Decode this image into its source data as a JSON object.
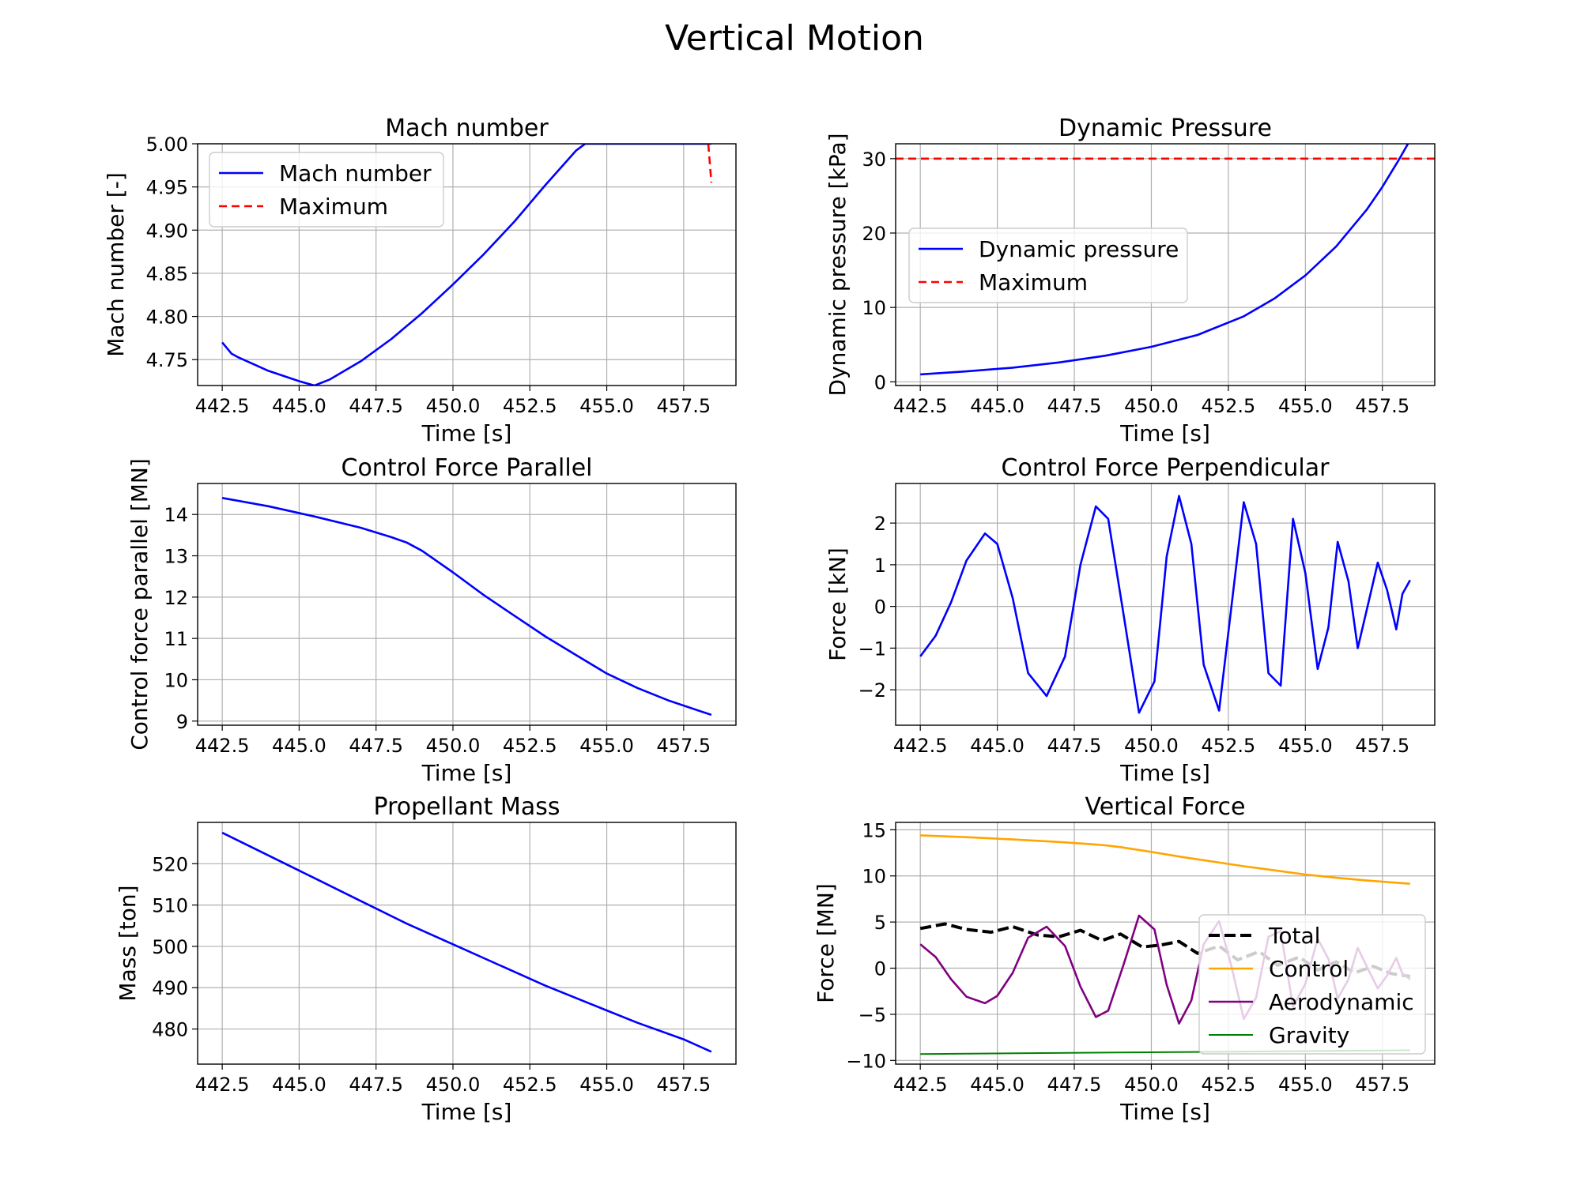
{
  "figure_title": "Vertical Motion",
  "colors": {
    "blue": "#0000ff",
    "red": "#ff0000",
    "black": "#000000",
    "orange": "#ffa500",
    "purple": "#800080",
    "green": "#008000",
    "grid": "#b0b0b0"
  },
  "chart_data": [
    {
      "type": "line",
      "title": "Mach number",
      "xlabel": "Time [s]",
      "ylabel": "Mach number [-]",
      "xlim": [
        441.7,
        459.2
      ],
      "ylim": [
        4.72,
        5.0
      ],
      "xticks": [
        442.5,
        445.0,
        447.5,
        450.0,
        452.5,
        455.0,
        457.5
      ],
      "xtick_labels": [
        "442.5",
        "445.0",
        "447.5",
        "450.0",
        "452.5",
        "455.0",
        "457.5"
      ],
      "yticks": [
        4.75,
        4.8,
        4.85,
        4.9,
        4.95,
        5.0
      ],
      "ytick_labels": [
        "4.75",
        "4.80",
        "4.85",
        "4.90",
        "4.95",
        "5.00"
      ],
      "grid": true,
      "legend": "upper-left",
      "series": [
        {
          "name": "Mach number",
          "color": "#0000ff",
          "x": [
            442.5,
            442.8,
            443.0,
            444.0,
            445.0,
            445.5,
            446.0,
            447.0,
            448.0,
            449.0,
            450.0,
            451.0,
            452.0,
            453.0,
            454.0,
            454.3,
            458.4
          ],
          "y": [
            4.77,
            4.757,
            4.753,
            4.737,
            4.725,
            4.72,
            4.727,
            4.748,
            4.774,
            4.804,
            4.837,
            4.872,
            4.91,
            4.952,
            4.992,
            5.0,
            5.0
          ]
        },
        {
          "name": "Maximum",
          "color": "#ff0000",
          "dash": true,
          "x": [
            458.3,
            458.4
          ],
          "y": [
            5.0,
            4.955
          ]
        }
      ]
    },
    {
      "type": "line",
      "title": "Dynamic Pressure",
      "xlabel": "Time [s]",
      "ylabel": "Dynamic pressure [kPa]",
      "xlim": [
        441.7,
        459.2
      ],
      "ylim": [
        -0.5,
        32
      ],
      "xticks": [
        442.5,
        445.0,
        447.5,
        450.0,
        452.5,
        455.0,
        457.5
      ],
      "xtick_labels": [
        "442.5",
        "445.0",
        "447.5",
        "450.0",
        "452.5",
        "455.0",
        "457.5"
      ],
      "yticks": [
        0,
        10,
        20,
        30
      ],
      "ytick_labels": [
        "0",
        "10",
        "20",
        "30"
      ],
      "grid": true,
      "legend": "center-left",
      "series": [
        {
          "name": "Dynamic pressure",
          "color": "#0000ff",
          "x": [
            442.5,
            444.0,
            445.5,
            447.0,
            448.5,
            450.0,
            451.5,
            453.0,
            454.0,
            455.0,
            456.0,
            457.0,
            457.5,
            458.0,
            458.4
          ],
          "y": [
            1.0,
            1.4,
            1.9,
            2.6,
            3.5,
            4.7,
            6.3,
            8.8,
            11.2,
            14.3,
            18.2,
            23.2,
            26.2,
            29.6,
            32.5
          ]
        },
        {
          "name": "Maximum",
          "color": "#ff0000",
          "dash": true,
          "x": [
            441.7,
            459.2
          ],
          "y": [
            30,
            30
          ]
        }
      ]
    },
    {
      "type": "line",
      "title": "Control Force Parallel",
      "xlabel": "Time [s]",
      "ylabel": "Control force parallel [MN]",
      "xlim": [
        441.7,
        459.2
      ],
      "ylim": [
        8.9,
        14.75
      ],
      "xticks": [
        442.5,
        445.0,
        447.5,
        450.0,
        452.5,
        455.0,
        457.5
      ],
      "xtick_labels": [
        "442.5",
        "445.0",
        "447.5",
        "450.0",
        "452.5",
        "455.0",
        "457.5"
      ],
      "yticks": [
        9,
        10,
        11,
        12,
        13,
        14
      ],
      "ytick_labels": [
        "9",
        "10",
        "11",
        "12",
        "13",
        "14"
      ],
      "grid": true,
      "series": [
        {
          "color": "#0000ff",
          "x": [
            442.5,
            444.0,
            445.5,
            447.0,
            448.0,
            448.5,
            449.0,
            450.0,
            451.0,
            452.0,
            453.0,
            454.0,
            455.0,
            456.0,
            457.0,
            458.4
          ],
          "y": [
            14.4,
            14.2,
            13.95,
            13.68,
            13.45,
            13.32,
            13.12,
            12.6,
            12.05,
            11.55,
            11.05,
            10.6,
            10.15,
            9.8,
            9.5,
            9.15
          ]
        }
      ]
    },
    {
      "type": "line",
      "title": "Control Force Perpendicular",
      "xlabel": "Time [s]",
      "ylabel": "Force [kN]",
      "xlim": [
        441.7,
        459.2
      ],
      "ylim": [
        -2.85,
        2.95
      ],
      "xticks": [
        442.5,
        445.0,
        447.5,
        450.0,
        452.5,
        455.0,
        457.5
      ],
      "xtick_labels": [
        "442.5",
        "445.0",
        "447.5",
        "450.0",
        "452.5",
        "455.0",
        "457.5"
      ],
      "yticks": [
        -2,
        -1,
        0,
        1,
        2
      ],
      "ytick_labels": [
        "−2",
        "−1",
        "0",
        "1",
        "2"
      ],
      "grid": true,
      "series": [
        {
          "color": "#0000ff",
          "x": [
            442.5,
            443.0,
            443.5,
            444.0,
            444.6,
            445.0,
            445.5,
            446.0,
            446.6,
            447.2,
            447.7,
            448.2,
            448.6,
            449.1,
            449.6,
            450.1,
            450.5,
            450.9,
            451.3,
            451.7,
            452.2,
            452.6,
            453.0,
            453.4,
            453.8,
            454.2,
            454.6,
            455.0,
            455.4,
            455.75,
            456.05,
            456.4,
            456.7,
            457.05,
            457.35,
            457.65,
            457.95,
            458.15,
            458.4
          ],
          "y": [
            -1.2,
            -0.7,
            0.1,
            1.1,
            1.75,
            1.5,
            0.2,
            -1.6,
            -2.15,
            -1.2,
            1.0,
            2.4,
            2.1,
            -0.2,
            -2.55,
            -1.8,
            1.2,
            2.65,
            1.5,
            -1.4,
            -2.5,
            0.0,
            2.5,
            1.5,
            -1.6,
            -1.9,
            2.1,
            0.8,
            -1.5,
            -0.5,
            1.55,
            0.6,
            -1.0,
            0.1,
            1.05,
            0.4,
            -0.55,
            0.3,
            0.63
          ]
        }
      ]
    },
    {
      "type": "line",
      "title": "Propellant Mass",
      "xlabel": "Time [s]",
      "ylabel": "Mass [ton]",
      "xlim": [
        441.7,
        459.2
      ],
      "ylim": [
        471.5,
        530.0
      ],
      "xticks": [
        442.5,
        445.0,
        447.5,
        450.0,
        452.5,
        455.0,
        457.5
      ],
      "xtick_labels": [
        "442.5",
        "445.0",
        "447.5",
        "450.0",
        "452.5",
        "455.0",
        "457.5"
      ],
      "yticks": [
        480,
        490,
        500,
        510,
        520
      ],
      "ytick_labels": [
        "480",
        "490",
        "500",
        "510",
        "520"
      ],
      "grid": true,
      "series": [
        {
          "color": "#0000ff",
          "x": [
            442.5,
            444.0,
            445.5,
            447.0,
            448.5,
            450.0,
            451.5,
            453.0,
            454.5,
            456.0,
            457.5,
            458.4
          ],
          "y": [
            527.5,
            522.0,
            516.5,
            511.0,
            505.5,
            500.5,
            495.5,
            490.5,
            486.0,
            481.5,
            477.5,
            474.5
          ]
        }
      ]
    },
    {
      "type": "line",
      "title": "Vertical Force",
      "xlabel": "Time [s]",
      "ylabel": "Force [MN]",
      "xlim": [
        441.7,
        459.2
      ],
      "ylim": [
        -10.4,
        15.8
      ],
      "xticks": [
        442.5,
        445.0,
        447.5,
        450.0,
        452.5,
        455.0,
        457.5
      ],
      "xtick_labels": [
        "442.5",
        "445.0",
        "447.5",
        "450.0",
        "452.5",
        "455.0",
        "457.5"
      ],
      "yticks": [
        -10,
        -5,
        0,
        5,
        10,
        15
      ],
      "ytick_labels": [
        "−10",
        "−5",
        "0",
        "5",
        "10",
        "15"
      ],
      "grid": true,
      "legend": "center-right",
      "series": [
        {
          "name": "Total",
          "color": "#000000",
          "dash": true,
          "width": 4,
          "x": [
            442.5,
            443.3,
            444.0,
            444.8,
            445.5,
            446.3,
            447.0,
            447.7,
            448.4,
            449.0,
            449.7,
            450.3,
            450.9,
            451.5,
            452.2,
            452.8,
            453.5,
            454.1,
            454.8,
            455.4,
            456.0,
            456.6,
            457.2,
            457.8,
            458.4
          ],
          "y": [
            4.3,
            4.8,
            4.2,
            3.9,
            4.5,
            3.6,
            3.4,
            4.1,
            3.0,
            3.7,
            2.3,
            2.5,
            2.9,
            1.6,
            2.4,
            0.9,
            1.8,
            0.3,
            1.2,
            -0.2,
            0.7,
            -0.5,
            0.2,
            -0.6,
            -0.9
          ]
        },
        {
          "name": "Control",
          "color": "#ffa500",
          "x": [
            442.5,
            444.0,
            445.5,
            447.0,
            448.0,
            448.5,
            449.0,
            450.0,
            451.0,
            452.0,
            453.0,
            454.0,
            455.0,
            456.0,
            457.0,
            458.4
          ],
          "y": [
            14.4,
            14.2,
            13.95,
            13.68,
            13.45,
            13.32,
            13.12,
            12.6,
            12.05,
            11.55,
            11.05,
            10.6,
            10.15,
            9.8,
            9.5,
            9.15
          ]
        },
        {
          "name": "Aerodynamic",
          "color": "#800080",
          "x": [
            442.5,
            443.0,
            443.5,
            444.0,
            444.6,
            445.0,
            445.5,
            446.0,
            446.6,
            447.2,
            447.7,
            448.2,
            448.6,
            449.1,
            449.6,
            450.1,
            450.5,
            450.9,
            451.3,
            451.7,
            452.2,
            452.6,
            453.0,
            453.4,
            453.8,
            454.2,
            454.6,
            455.0,
            455.4,
            455.75,
            456.05,
            456.4,
            456.7,
            457.05,
            457.35,
            457.65,
            457.95,
            458.15,
            458.4
          ],
          "y": [
            2.6,
            1.2,
            -1.2,
            -3.1,
            -3.8,
            -3.0,
            -0.5,
            3.3,
            4.5,
            2.4,
            -2.0,
            -5.3,
            -4.6,
            0.4,
            5.7,
            4.2,
            -1.8,
            -6.0,
            -3.5,
            2.6,
            5.1,
            0.2,
            -5.5,
            -3.2,
            3.4,
            4.0,
            -4.2,
            -1.7,
            3.2,
            1.0,
            -3.3,
            -1.2,
            2.2,
            -0.2,
            -2.2,
            -0.8,
            1.1,
            -0.6,
            -1.2
          ]
        },
        {
          "name": "Gravity",
          "color": "#008000",
          "width": 2,
          "x": [
            442.5,
            458.4
          ],
          "y": [
            -9.3,
            -8.9
          ]
        }
      ]
    }
  ]
}
